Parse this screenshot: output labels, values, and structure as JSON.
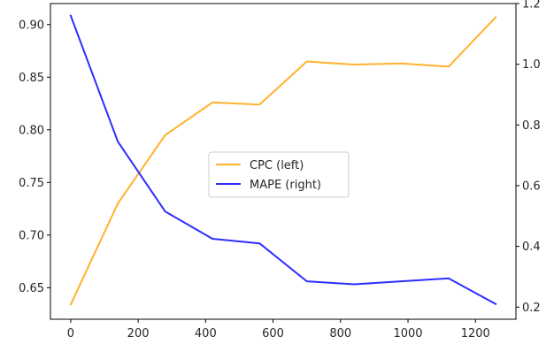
{
  "chart_data": {
    "type": "line",
    "x": [
      0,
      140,
      280,
      420,
      560,
      700,
      840,
      980,
      1120,
      1260
    ],
    "xlim": [
      -60,
      1320
    ],
    "x_ticks": [
      0,
      200,
      400,
      600,
      800,
      1000,
      1200
    ],
    "x_tick_labels": [
      "0",
      "200",
      "400",
      "600",
      "800",
      "1000",
      "1200"
    ],
    "y_left_lim": [
      0.62,
      0.92
    ],
    "y_left_ticks": [
      0.65,
      0.7,
      0.75,
      0.8,
      0.85,
      0.9
    ],
    "y_left_tick_labels": [
      "0.65",
      "0.70",
      "0.75",
      "0.80",
      "0.85",
      "0.90"
    ],
    "y_right_lim": [
      0.16,
      1.2
    ],
    "y_right_ticks": [
      0.2,
      0.4,
      0.6,
      0.8,
      1.0,
      1.2
    ],
    "y_right_tick_labels": [
      "0.2",
      "0.4",
      "0.6",
      "0.8",
      "1.0",
      "1.2"
    ],
    "grid": false,
    "legend_position": "center",
    "series": [
      {
        "name": "CPC (left)",
        "axis": "left",
        "color": "#ffb12e",
        "values": [
          0.634,
          0.73,
          0.795,
          0.826,
          0.824,
          0.865,
          0.862,
          0.863,
          0.86,
          0.907
        ]
      },
      {
        "name": "MAPE (right)",
        "axis": "right",
        "color": "#2d2dff",
        "values": [
          1.16,
          0.745,
          0.515,
          0.425,
          0.41,
          0.285,
          0.275,
          0.285,
          0.295,
          0.21
        ]
      }
    ]
  }
}
